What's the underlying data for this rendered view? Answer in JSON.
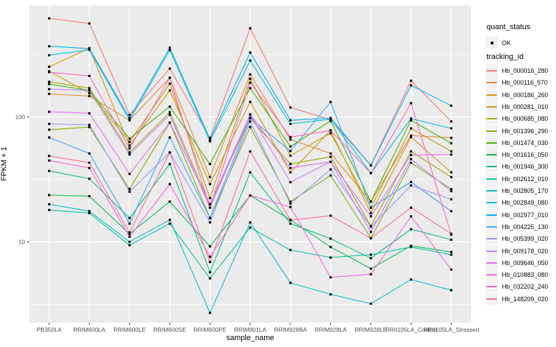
{
  "style": {
    "panel_bg": "#EBEBEB",
    "grid_color": "#FFFFFF",
    "tick_label_color": "#4D4D4D",
    "tick_mark_color": "#333333",
    "text_color": "#000000",
    "legend_key_bg": "#F2F2F2",
    "point_color": "#000000"
  },
  "chart_data": {
    "type": "line",
    "title": "",
    "xlabel": "sample_name",
    "ylabel": "FPKM + 1",
    "y_scale": "log10",
    "y_major_ticks": [
      100,
      10
    ],
    "y_minor_gridlines": [
      316,
      31.6,
      3.16
    ],
    "ylim": [
      2.3,
      771
    ],
    "grid": true,
    "legend_position": "right",
    "point_shape": "filled-square",
    "categories": [
      "PB350LA",
      "RRIM600LA",
      "RRIM600LE",
      "RRIM600SE",
      "RRIM600PE",
      "RRIM901LA",
      "RRIM928BA",
      "RRIM928LA",
      "RRIM928LE",
      "RRII105LA_Control",
      "RRII105LA_Stressed"
    ],
    "legend": {
      "quant_status_title": "quant_status",
      "quant_status_item": "OK",
      "tracking_title": "tracking_id"
    },
    "series": [
      {
        "name": "Hb_000016_280",
        "color": "#F8766D",
        "values": [
          615,
          560,
          104,
          244,
          68,
          512,
          119,
          95,
          41,
          195,
          92
        ]
      },
      {
        "name": "Hb_000116_570",
        "color": "#EA8331",
        "values": [
          153,
          147,
          94,
          206,
          33,
          219,
          66,
          51,
          21,
          71,
          68
        ]
      },
      {
        "name": "Hb_000186_260",
        "color": "#D89000",
        "values": [
          252,
          355,
          59,
          163,
          29,
          132,
          36,
          78,
          17,
          69,
          36
        ]
      },
      {
        "name": "Hb_000281_010",
        "color": "#C09B00",
        "values": [
          232,
          155,
          63,
          185,
          22.4,
          202,
          49,
          74,
          18.8,
          81,
          53
        ]
      },
      {
        "name": "Hb_000685_080",
        "color": "#A3A500",
        "values": [
          191,
          170,
          52,
          109,
          20,
          98,
          42,
          48,
          13.4,
          53,
          33
        ]
      },
      {
        "name": "Hb_001396_290",
        "color": "#7CAE00",
        "values": [
          79,
          83,
          26.5,
          90,
          15.5,
          83,
          21,
          34,
          10.7,
          43,
          26.4
        ]
      },
      {
        "name": "Hb_001474_030",
        "color": "#39B600",
        "values": [
          183,
          163,
          67,
          121,
          42,
          170,
          58,
          93,
          21,
          94,
          61.5
        ]
      },
      {
        "name": "Hb_001616_050",
        "color": "#00BB4E",
        "values": [
          23.7,
          23.2,
          11.6,
          21,
          9.2,
          23.5,
          15,
          9.1,
          6.1,
          9.3,
          8.3
        ]
      },
      {
        "name": "Hb_001946_300",
        "color": "#00BF7D",
        "values": [
          37,
          32,
          15.5,
          42,
          5.7,
          36,
          14,
          10.6,
          7.4,
          12.6,
          10.4
        ]
      },
      {
        "name": "Hb_002612_010",
        "color": "#00C1A3",
        "values": [
          18,
          17,
          9.4,
          14,
          5.1,
          13,
          8.6,
          7.5,
          7.9,
          9.1,
          7.9
        ]
      },
      {
        "name": "Hb_002805_170",
        "color": "#00BFC4",
        "values": [
          20,
          17.6,
          10,
          15,
          2.7,
          14.3,
          4.7,
          3.8,
          3.2,
          5,
          4.1
        ]
      },
      {
        "name": "Hb_002849_080",
        "color": "#00BAE0",
        "values": [
          312,
          345,
          94,
          343,
          63.8,
          283,
          88,
          96,
          35.5,
          97,
          81
        ]
      },
      {
        "name": "Hb_002977_010",
        "color": "#00B0F6",
        "values": [
          368,
          352,
          98,
          359,
          66.3,
          328,
          94,
          98,
          41,
          179,
          123
        ]
      },
      {
        "name": "Hb_004225_130",
        "color": "#35A2FF",
        "values": [
          68.5,
          51,
          14,
          68.5,
          15.5,
          98,
          53.3,
          132,
          18.8,
          30.2,
          17.6
        ]
      },
      {
        "name": "Hb_005399_020",
        "color": "#9590FF",
        "values": [
          88,
          86.4,
          25.2,
          52,
          14.3,
          92,
          20.2,
          38,
          13.2,
          28.3,
          21.9
        ]
      },
      {
        "name": "Hb_009178_020",
        "color": "#C77CFF",
        "values": [
          167,
          163,
          50,
          104,
          18.8,
          104,
          30,
          43.8,
          12,
          46,
          25.5
        ]
      },
      {
        "name": "Hb_009646_050",
        "color": "#E76BF3",
        "values": [
          110,
          107,
          35,
          90,
          20,
          105,
          39,
          43.8,
          16,
          49.6,
          50
        ]
      },
      {
        "name": "Hb_010883_080",
        "color": "#FA62DB",
        "values": [
          44.8,
          39,
          11,
          29,
          7.6,
          23.5,
          19,
          5.2,
          5.5,
          16,
          6
        ]
      },
      {
        "name": "Hb_032202_240",
        "color": "#FF62BC",
        "values": [
          228,
          213,
          56,
          206,
          18.8,
          188,
          69,
          78,
          35.5,
          129,
          11.4
        ]
      },
      {
        "name": "Hb_148209_020",
        "color": "#FF6A98",
        "values": [
          48.7,
          43,
          11.9,
          52,
          6.9,
          53,
          14.9,
          16.2,
          10.7,
          18.8,
          11.6
        ]
      }
    ]
  }
}
